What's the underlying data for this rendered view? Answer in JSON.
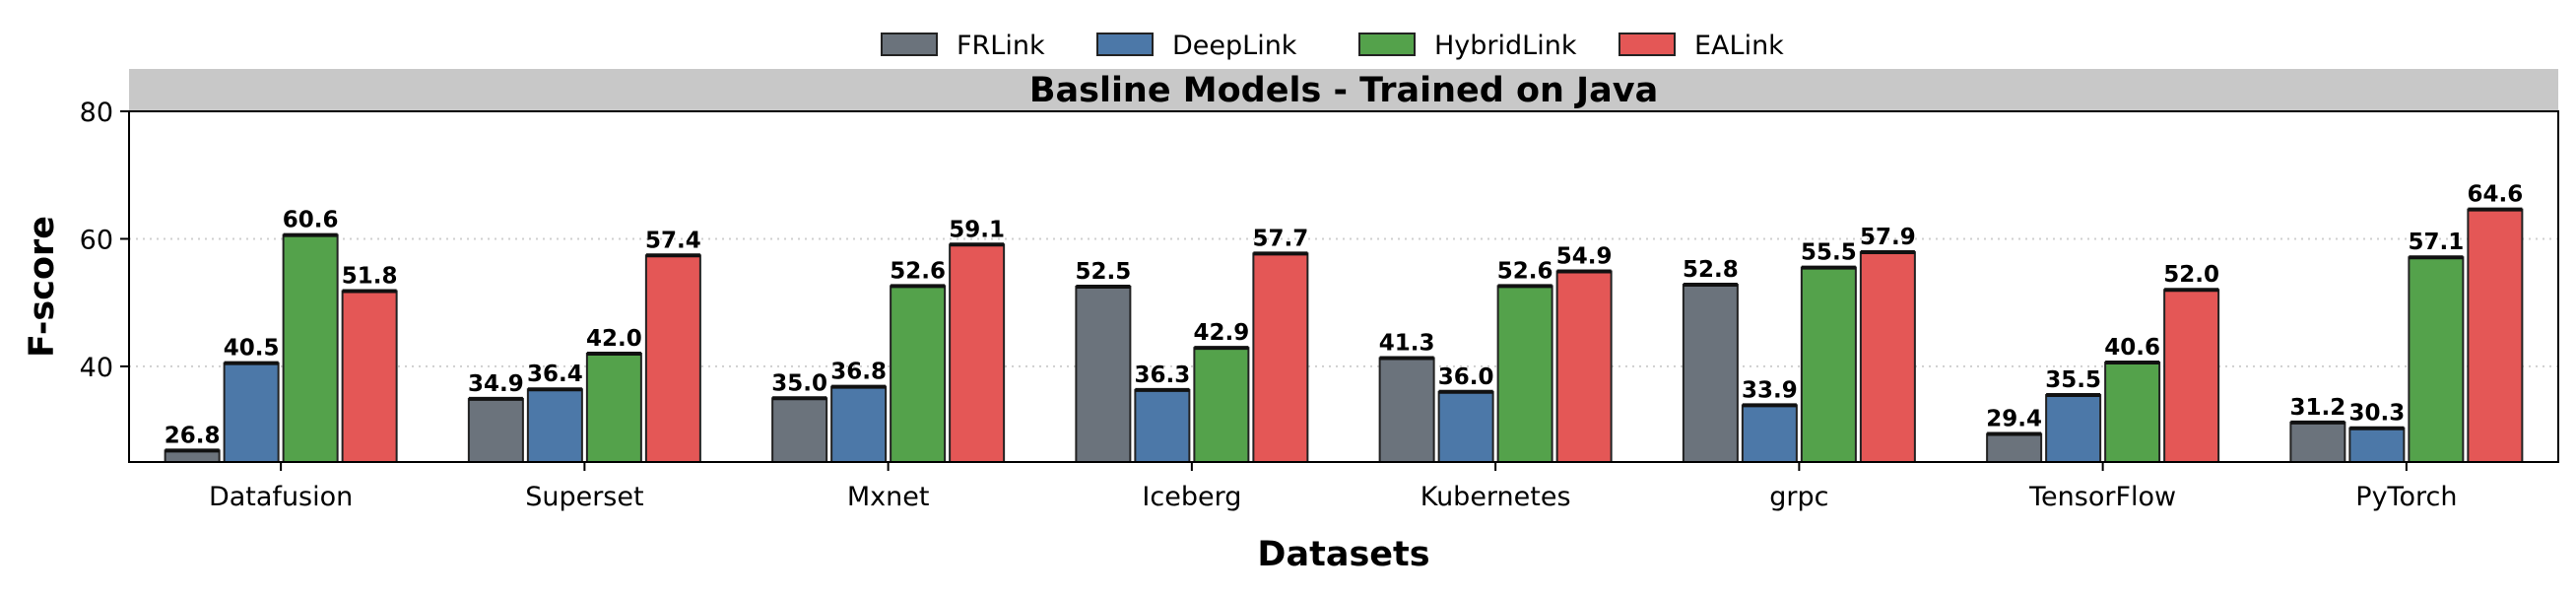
{
  "chart_data": {
    "type": "bar",
    "title": "Basline Models - Trained on Java",
    "xlabel": "Datasets",
    "ylabel": "F-score",
    "ylim": [
      25,
      80
    ],
    "yticks": [
      40,
      60,
      80
    ],
    "grid": "horizontal-dotted",
    "legend_position": "top-center",
    "categories": [
      "Datafusion",
      "Superset",
      "Mxnet",
      "Iceberg",
      "Kubernetes",
      "grpc",
      "TensorFlow",
      "PyTorch"
    ],
    "series": [
      {
        "name": "FRLink",
        "color": "#6b737c",
        "values": [
          26.8,
          34.9,
          35.0,
          52.5,
          41.3,
          52.8,
          29.4,
          31.2
        ]
      },
      {
        "name": "DeepLink",
        "color": "#4c78a8",
        "values": [
          40.5,
          36.4,
          36.8,
          36.3,
          36.0,
          33.9,
          35.5,
          30.3
        ]
      },
      {
        "name": "HybridLink",
        "color": "#54a24b",
        "values": [
          60.6,
          42.0,
          52.6,
          42.9,
          52.6,
          55.5,
          40.6,
          57.1
        ]
      },
      {
        "name": "EALink",
        "color": "#e45756",
        "values": [
          51.8,
          57.4,
          59.1,
          57.7,
          54.9,
          57.9,
          52.0,
          64.6
        ]
      }
    ]
  }
}
